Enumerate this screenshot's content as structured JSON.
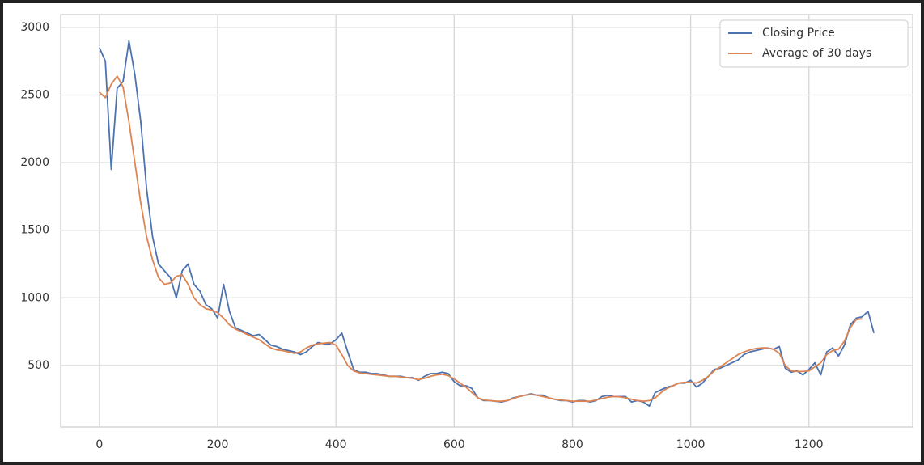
{
  "chart_data": {
    "type": "line",
    "x": [
      0,
      10,
      20,
      30,
      40,
      50,
      60,
      70,
      80,
      90,
      100,
      110,
      120,
      130,
      140,
      150,
      160,
      170,
      180,
      190,
      200,
      210,
      220,
      230,
      240,
      250,
      260,
      270,
      280,
      290,
      300,
      310,
      320,
      330,
      340,
      350,
      360,
      370,
      380,
      390,
      400,
      410,
      420,
      430,
      440,
      450,
      460,
      470,
      480,
      490,
      500,
      510,
      520,
      530,
      540,
      550,
      560,
      570,
      580,
      590,
      600,
      610,
      620,
      630,
      640,
      650,
      660,
      670,
      680,
      690,
      700,
      710,
      720,
      730,
      740,
      750,
      760,
      770,
      780,
      790,
      800,
      810,
      820,
      830,
      840,
      850,
      860,
      870,
      880,
      890,
      900,
      910,
      920,
      930,
      940,
      950,
      960,
      970,
      980,
      990,
      1000,
      1010,
      1020,
      1030,
      1040,
      1050,
      1060,
      1070,
      1080,
      1090,
      1100,
      1110,
      1120,
      1130,
      1140,
      1150,
      1160,
      1170,
      1180,
      1190,
      1200,
      1210,
      1220,
      1230,
      1240,
      1250,
      1260,
      1270,
      1280,
      1290,
      1300,
      1310
    ],
    "series": [
      {
        "name": "Closing Price",
        "color": "#4c72b0",
        "values": [
          2850,
          2750,
          1950,
          2550,
          2600,
          2900,
          2650,
          2300,
          1800,
          1450,
          1250,
          1200,
          1150,
          1000,
          1200,
          1250,
          1100,
          1050,
          950,
          920,
          850,
          1100,
          900,
          780,
          760,
          740,
          720,
          730,
          690,
          650,
          640,
          620,
          610,
          600,
          580,
          600,
          640,
          670,
          660,
          660,
          690,
          740,
          600,
          470,
          450,
          450,
          440,
          440,
          430,
          420,
          420,
          420,
          410,
          410,
          390,
          420,
          440,
          440,
          450,
          440,
          380,
          350,
          350,
          330,
          260,
          240,
          240,
          235,
          230,
          240,
          260,
          270,
          280,
          290,
          280,
          280,
          260,
          250,
          240,
          240,
          230,
          240,
          240,
          230,
          240,
          270,
          280,
          270,
          270,
          270,
          230,
          240,
          230,
          200,
          300,
          320,
          340,
          350,
          370,
          370,
          390,
          340,
          370,
          420,
          470,
          480,
          500,
          520,
          540,
          580,
          600,
          610,
          620,
          630,
          620,
          640,
          480,
          450,
          460,
          430,
          470,
          520,
          430,
          600,
          630,
          570,
          650,
          800,
          850,
          860,
          900,
          740
        ]
      },
      {
        "name": "Average of 30 days",
        "color": "#dd8452",
        "values": [
          2520,
          2480,
          2580,
          2640,
          2560,
          2300,
          2000,
          1700,
          1450,
          1280,
          1150,
          1100,
          1110,
          1160,
          1170,
          1100,
          1000,
          950,
          920,
          910,
          890,
          850,
          800,
          770,
          750,
          730,
          710,
          690,
          660,
          630,
          615,
          610,
          600,
          590,
          600,
          630,
          650,
          660,
          665,
          670,
          650,
          580,
          500,
          460,
          445,
          440,
          435,
          430,
          425,
          420,
          420,
          415,
          410,
          405,
          395,
          405,
          420,
          430,
          435,
          425,
          400,
          370,
          340,
          300,
          260,
          245,
          240,
          235,
          235,
          240,
          255,
          270,
          280,
          285,
          280,
          270,
          260,
          250,
          245,
          240,
          235,
          235,
          235,
          235,
          245,
          255,
          265,
          270,
          268,
          260,
          250,
          240,
          235,
          240,
          260,
          300,
          330,
          350,
          370,
          375,
          375,
          370,
          390,
          420,
          460,
          490,
          520,
          550,
          580,
          600,
          615,
          625,
          630,
          630,
          620,
          590,
          500,
          460,
          455,
          455,
          460,
          490,
          520,
          580,
          610,
          620,
          680,
          780,
          840,
          845,
          null,
          null
        ]
      }
    ],
    "xlim": [
      -65.5,
      1375.5
    ],
    "xticks": [
      0,
      200,
      400,
      600,
      800,
      1000,
      1200
    ],
    "ylim": [
      45,
      3095
    ],
    "yticks": [
      500,
      1000,
      1500,
      2000,
      2500,
      3000
    ],
    "grid": true,
    "legend": "upper right"
  }
}
